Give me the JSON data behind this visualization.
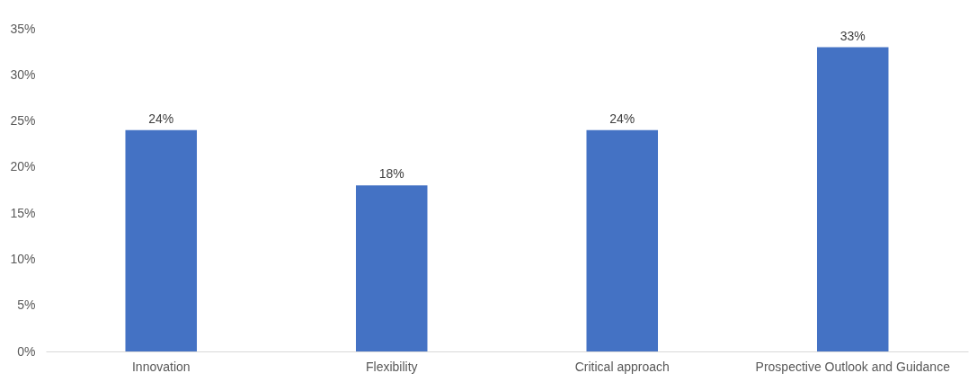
{
  "chart_data": {
    "type": "bar",
    "categories": [
      "Innovation",
      "Flexibility",
      "Critical approach",
      "Prospective Outlook and Guidance"
    ],
    "values": [
      24,
      18,
      24,
      33
    ],
    "color": "#4472c4",
    "value_labels": [
      "24%",
      "18%",
      "24%",
      "33%"
    ],
    "ylim": [
      0,
      35
    ],
    "yticks": [
      {
        "value": 0,
        "label": "0%"
      },
      {
        "value": 5,
        "label": "5%"
      },
      {
        "value": 10,
        "label": "10%"
      },
      {
        "value": 15,
        "label": "15%"
      },
      {
        "value": 20,
        "label": "20%"
      },
      {
        "value": 25,
        "label": "25%"
      },
      {
        "value": 30,
        "label": "30%"
      },
      {
        "value": 35,
        "label": "35%"
      }
    ],
    "grid": false
  }
}
